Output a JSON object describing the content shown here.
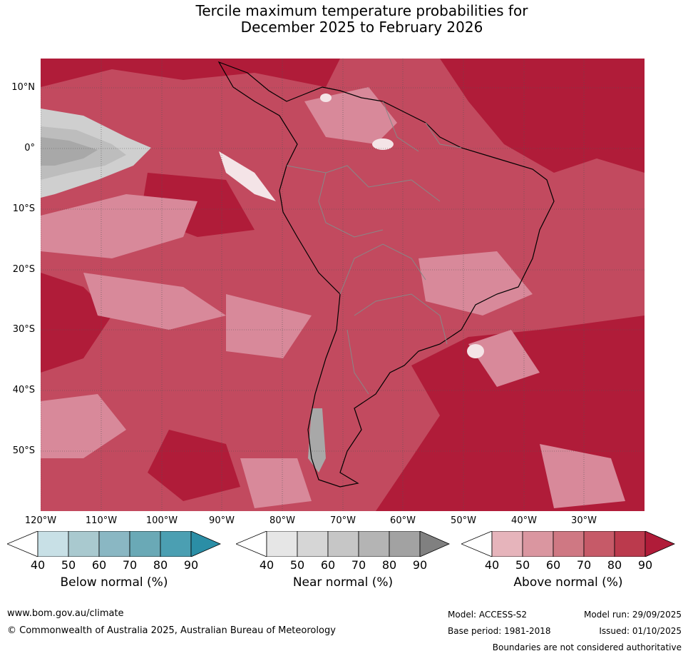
{
  "title": {
    "line1": "Tercile maximum temperature probabilities for",
    "line2": "December 2025 to February 2026"
  },
  "axes": {
    "lat_labels": [
      "10°N",
      "0°",
      "10°S",
      "20°S",
      "30°S",
      "40°S",
      "50°S"
    ],
    "lon_labels": [
      "120°W",
      "110°W",
      "100°W",
      "90°W",
      "80°W",
      "70°W",
      "60°W",
      "50°W",
      "40°W",
      "30°W"
    ]
  },
  "colorbars": [
    {
      "title": "Below normal (%)",
      "ticks": [
        "40",
        "50",
        "60",
        "70",
        "80",
        "90"
      ],
      "colors": [
        "#ffffff",
        "#c8e0e6",
        "#a9c9cf",
        "#8ab7c3",
        "#6aa9b6",
        "#4b9fb2",
        "#2b8ea6"
      ]
    },
    {
      "title": "Near normal (%)",
      "ticks": [
        "40",
        "50",
        "60",
        "70",
        "80",
        "90"
      ],
      "colors": [
        "#ffffff",
        "#e6e6e6",
        "#d6d6d6",
        "#c6c6c6",
        "#b4b4b4",
        "#a2a2a2",
        "#808080"
      ]
    },
    {
      "title": "Above normal (%)",
      "ticks": [
        "40",
        "50",
        "60",
        "70",
        "80",
        "90"
      ],
      "colors": [
        "#ffffff",
        "#e6b4bb",
        "#da96a0",
        "#cf7883",
        "#c65a68",
        "#bb3a4d",
        "#b01c39"
      ]
    }
  ],
  "footer": {
    "website": "www.bom.gov.au/climate",
    "copyright": "© Commonwealth of Australia 2025, Australian Bureau of Meteorology",
    "model": "Model: ACCESS-S2",
    "model_run": "Model run: 29/09/2025",
    "base_period": "Base period: 1981-2018",
    "issued": "Issued: 01/10/2025",
    "disclaimer": "Boundaries are not considered authoritative"
  }
}
